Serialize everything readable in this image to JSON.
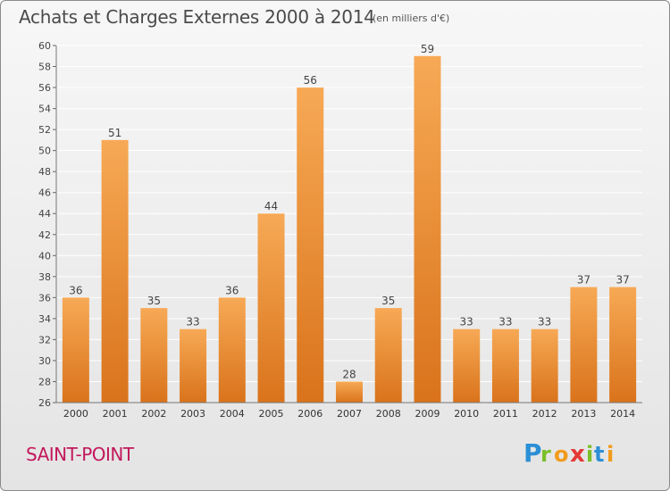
{
  "header": {
    "title": "Achats et Charges Externes 2000 à 2014",
    "subtitle": "(en milliers d'€)"
  },
  "footer": {
    "place_name": "SAINT-POINT",
    "logo_text": "Proxiti"
  },
  "colors": {
    "bar_light": "#f7a955",
    "bar_dark": "#d9731b",
    "place_name": "#c2185b",
    "grid": "#ffffff"
  },
  "chart_data": {
    "type": "bar",
    "title": "Achats et Charges Externes 2000 à 2014",
    "subtitle": "(en milliers d'€)",
    "categories": [
      "2000",
      "2001",
      "2002",
      "2003",
      "2004",
      "2005",
      "2006",
      "2007",
      "2008",
      "2009",
      "2010",
      "2011",
      "2012",
      "2013",
      "2014"
    ],
    "values": [
      36,
      51,
      35,
      33,
      36,
      44,
      56,
      28,
      35,
      59,
      33,
      33,
      33,
      37,
      37
    ],
    "ylim": [
      26,
      60
    ],
    "yticks": [
      26,
      28,
      30,
      32,
      34,
      36,
      38,
      40,
      42,
      44,
      46,
      48,
      50,
      52,
      54,
      56,
      58,
      60
    ],
    "xlabel": "",
    "ylabel": "",
    "grid": true,
    "legend": "none"
  }
}
